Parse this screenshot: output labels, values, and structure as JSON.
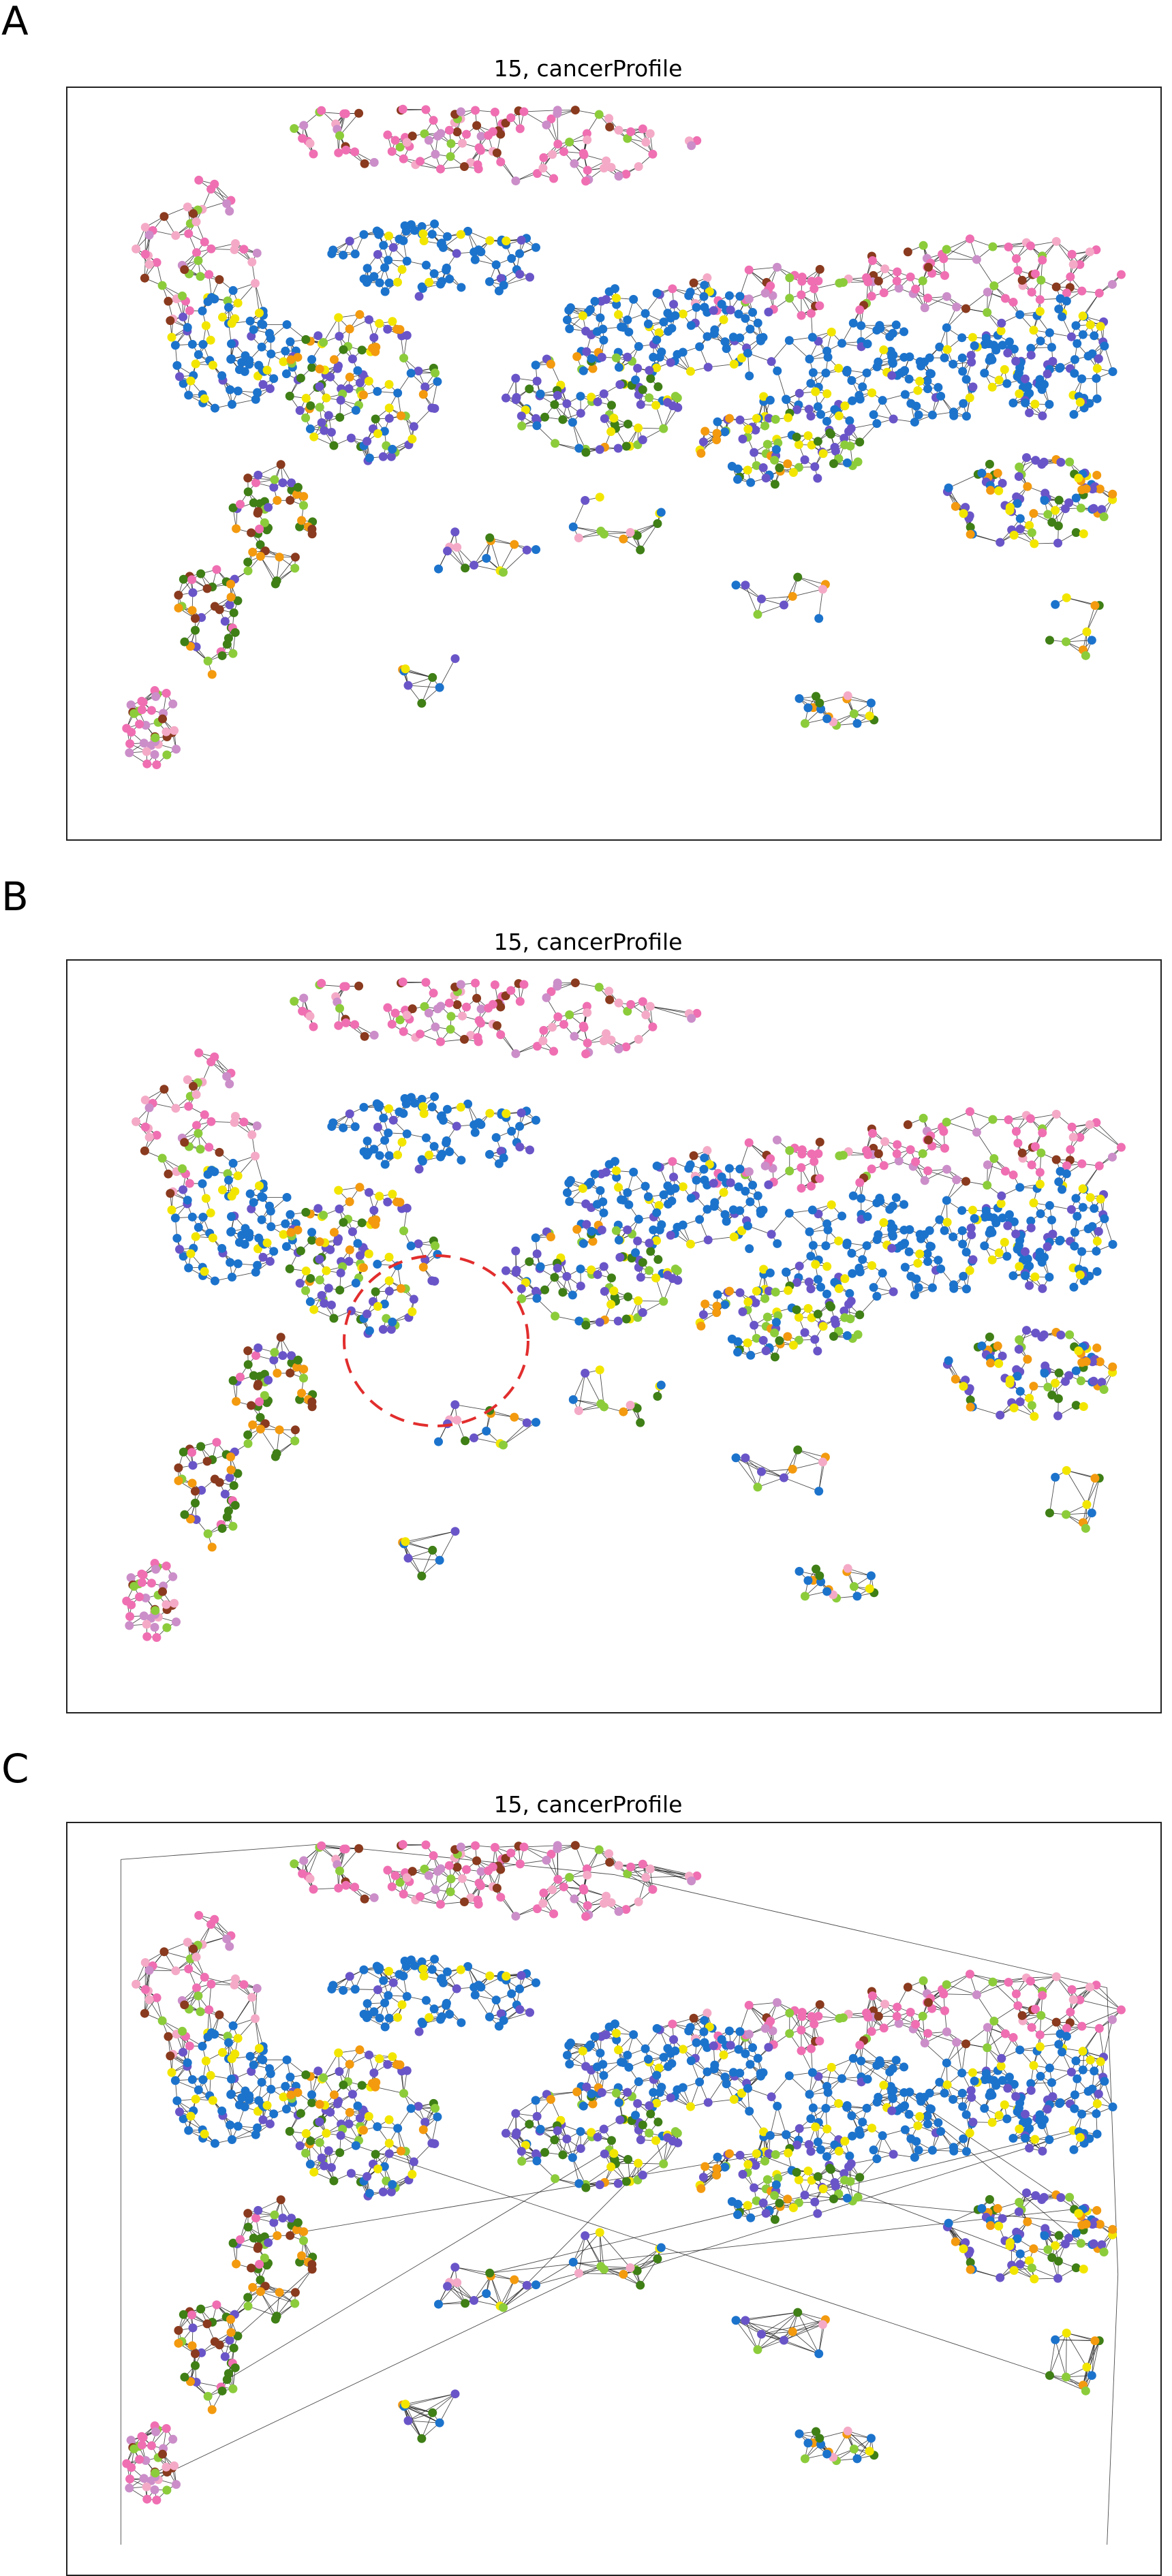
{
  "panels": [
    {
      "letter": "A",
      "title": "15, cancerProfile",
      "variant": "local",
      "highlight": false
    },
    {
      "letter": "B",
      "title": "15, cancerProfile",
      "variant": "knn",
      "highlight": true
    },
    {
      "letter": "C",
      "title": "15, cancerProfile",
      "variant": "delaunay",
      "highlight": false
    }
  ],
  "node_colors": {
    "pink": "#ef6fb2",
    "light_pink": "#f4aac6",
    "brown": "#8a3a1e",
    "blue": "#1c73cc",
    "purple": "#6a55c8",
    "yellow": "#f2e600",
    "light_green": "#8ccc3b",
    "dark_green": "#3f7f16",
    "orange": "#f39a0f",
    "lavender": "#cb8ec9",
    "gray": "#808080"
  },
  "edge_color": "#111111",
  "highlight_color": "#e22d2d"
}
